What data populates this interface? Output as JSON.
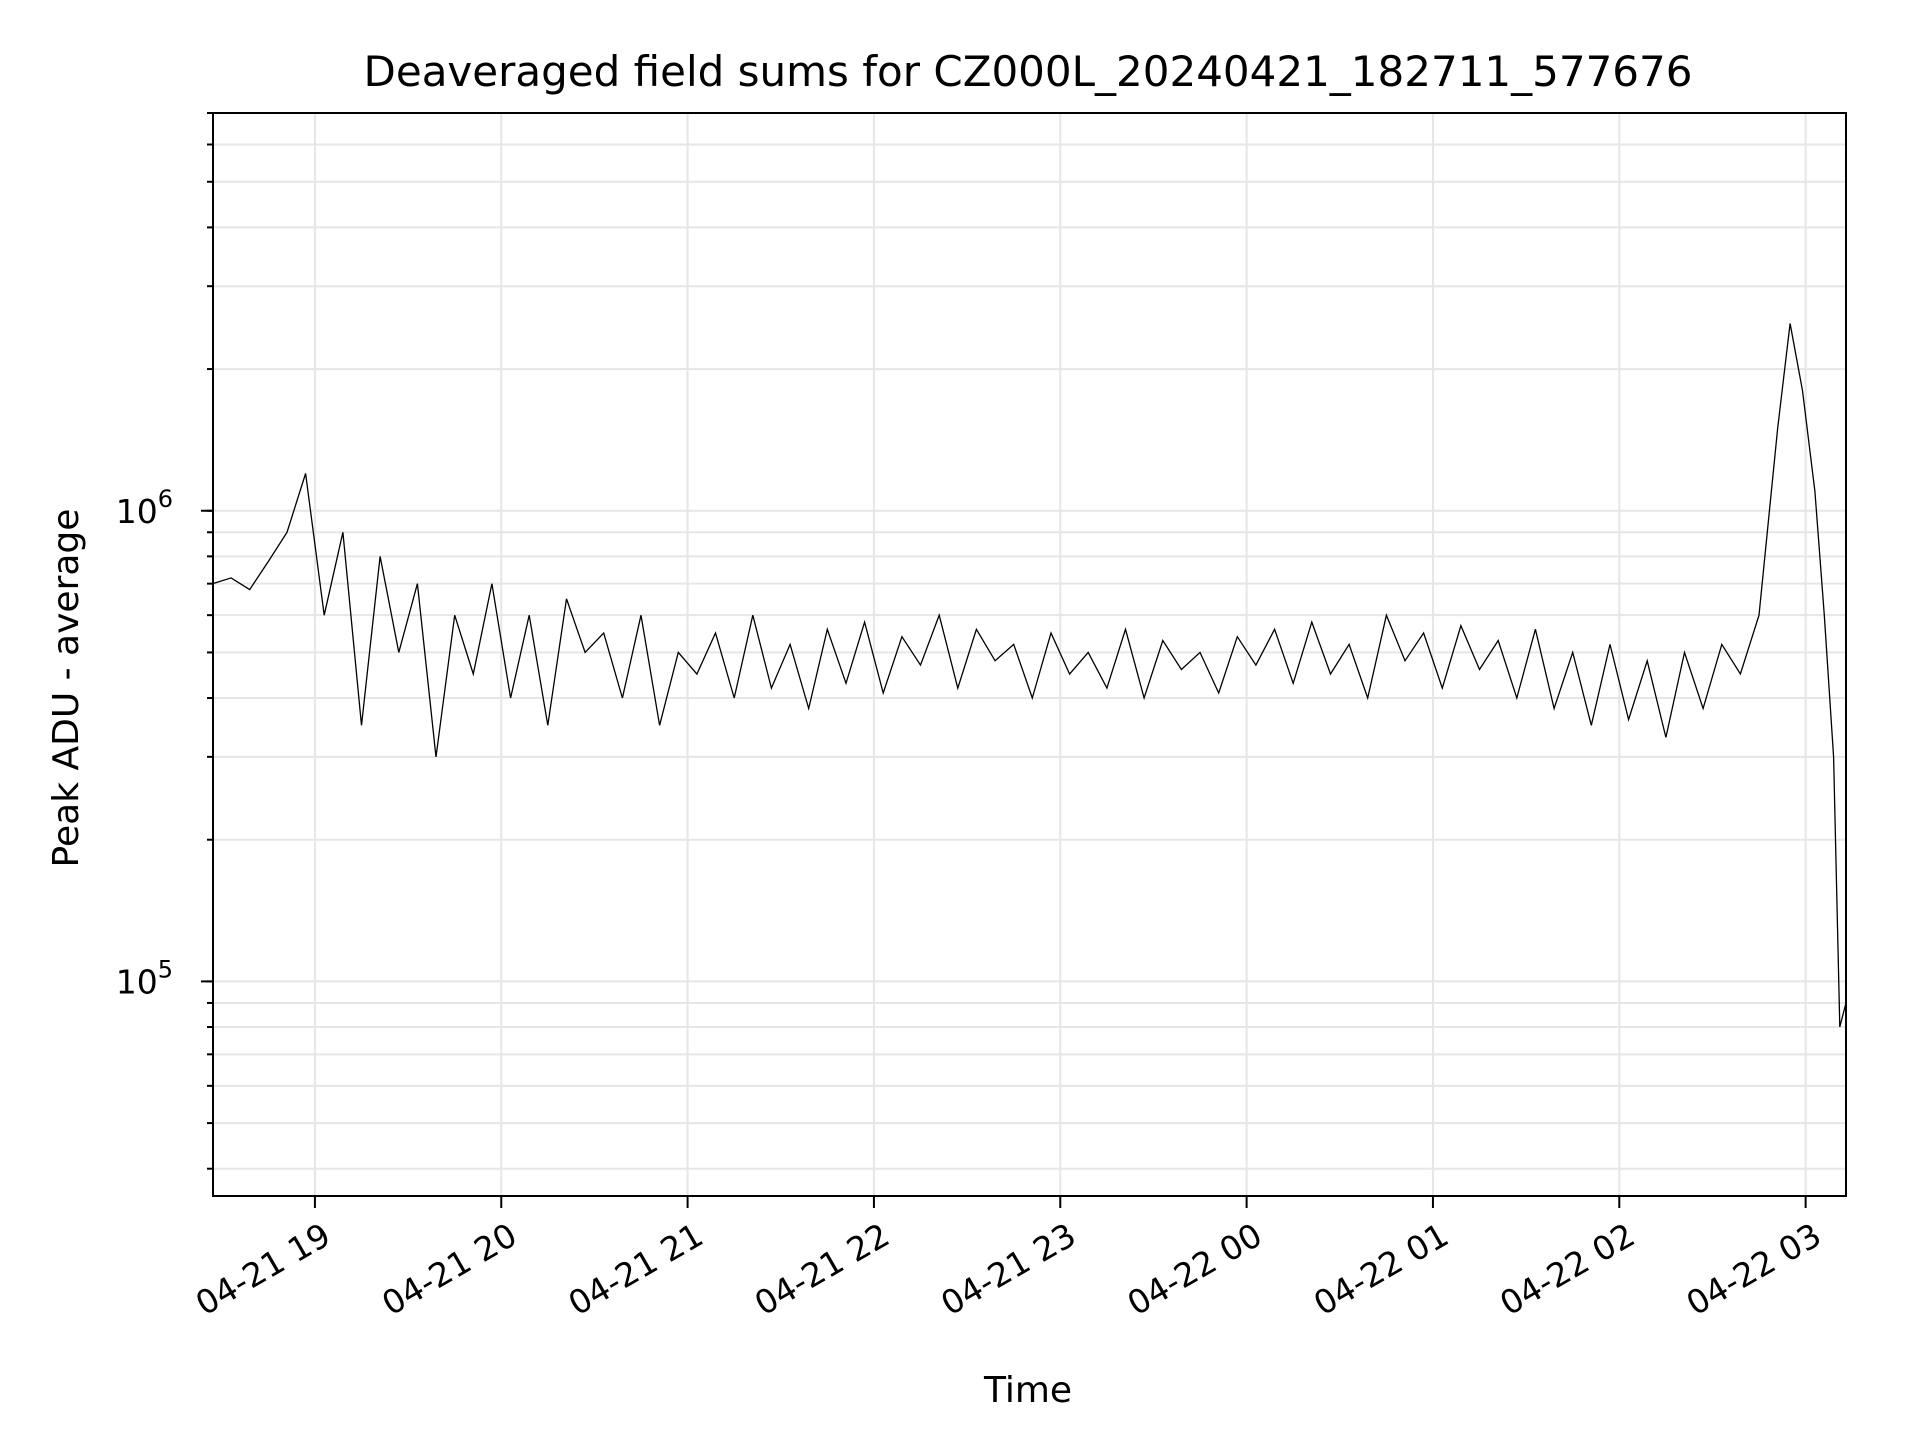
{
  "chart_data": {
    "type": "line",
    "title": "Deaveraged field sums for CZ000L_20240421_182711_577676",
    "xlabel": "Time",
    "ylabel": "Peak ADU - average",
    "yscale": "log",
    "grid": true,
    "line_color": "#000000",
    "xlim": [
      "2024-04-21T18:27:11",
      "2024-04-22T03:13:00"
    ],
    "ylim": [
      35000,
      7000000
    ],
    "x_ticks": [
      {
        "label": "04-21 19",
        "t": "2024-04-21T19:00:00"
      },
      {
        "label": "04-21 20",
        "t": "2024-04-21T20:00:00"
      },
      {
        "label": "04-21 21",
        "t": "2024-04-21T21:00:00"
      },
      {
        "label": "04-21 22",
        "t": "2024-04-21T22:00:00"
      },
      {
        "label": "04-21 23",
        "t": "2024-04-21T23:00:00"
      },
      {
        "label": "04-22 00",
        "t": "2024-04-22T00:00:00"
      },
      {
        "label": "04-22 01",
        "t": "2024-04-22T01:00:00"
      },
      {
        "label": "04-22 02",
        "t": "2024-04-22T02:00:00"
      },
      {
        "label": "04-22 03",
        "t": "2024-04-22T03:00:00"
      }
    ],
    "y_ticks": [
      {
        "base": "10",
        "exp": "5",
        "value": 100000
      },
      {
        "base": "10",
        "exp": "6",
        "value": 1000000
      }
    ],
    "series": [
      {
        "points": [
          [
            "2024-04-21T18:27",
            700000
          ],
          [
            "2024-04-21T18:33",
            720000
          ],
          [
            "2024-04-21T18:39",
            680000
          ],
          [
            "2024-04-21T18:45",
            780000
          ],
          [
            "2024-04-21T18:51",
            900000
          ],
          [
            "2024-04-21T18:57",
            1200000
          ],
          [
            "2024-04-21T19:03",
            600000
          ],
          [
            "2024-04-21T19:09",
            900000
          ],
          [
            "2024-04-21T19:15",
            350000
          ],
          [
            "2024-04-21T19:21",
            800000
          ],
          [
            "2024-04-21T19:27",
            500000
          ],
          [
            "2024-04-21T19:33",
            700000
          ],
          [
            "2024-04-21T19:39",
            300000
          ],
          [
            "2024-04-21T19:45",
            600000
          ],
          [
            "2024-04-21T19:51",
            450000
          ],
          [
            "2024-04-21T19:57",
            700000
          ],
          [
            "2024-04-21T20:03",
            400000
          ],
          [
            "2024-04-21T20:09",
            600000
          ],
          [
            "2024-04-21T20:15",
            350000
          ],
          [
            "2024-04-21T20:21",
            650000
          ],
          [
            "2024-04-21T20:27",
            500000
          ],
          [
            "2024-04-21T20:33",
            550000
          ],
          [
            "2024-04-21T20:39",
            400000
          ],
          [
            "2024-04-21T20:45",
            600000
          ],
          [
            "2024-04-21T20:51",
            350000
          ],
          [
            "2024-04-21T20:57",
            500000
          ],
          [
            "2024-04-21T21:03",
            450000
          ],
          [
            "2024-04-21T21:09",
            550000
          ],
          [
            "2024-04-21T21:15",
            400000
          ],
          [
            "2024-04-21T21:21",
            600000
          ],
          [
            "2024-04-21T21:27",
            420000
          ],
          [
            "2024-04-21T21:33",
            520000
          ],
          [
            "2024-04-21T21:39",
            380000
          ],
          [
            "2024-04-21T21:45",
            560000
          ],
          [
            "2024-04-21T21:51",
            430000
          ],
          [
            "2024-04-21T21:57",
            580000
          ],
          [
            "2024-04-21T22:03",
            410000
          ],
          [
            "2024-04-21T22:09",
            540000
          ],
          [
            "2024-04-21T22:15",
            470000
          ],
          [
            "2024-04-21T22:21",
            600000
          ],
          [
            "2024-04-21T22:27",
            420000
          ],
          [
            "2024-04-21T22:33",
            560000
          ],
          [
            "2024-04-21T22:39",
            480000
          ],
          [
            "2024-04-21T22:45",
            520000
          ],
          [
            "2024-04-21T22:51",
            400000
          ],
          [
            "2024-04-21T22:57",
            550000
          ],
          [
            "2024-04-21T23:03",
            450000
          ],
          [
            "2024-04-21T23:09",
            500000
          ],
          [
            "2024-04-21T23:15",
            420000
          ],
          [
            "2024-04-21T23:21",
            560000
          ],
          [
            "2024-04-21T23:27",
            400000
          ],
          [
            "2024-04-21T23:33",
            530000
          ],
          [
            "2024-04-21T23:39",
            460000
          ],
          [
            "2024-04-21T23:45",
            500000
          ],
          [
            "2024-04-21T23:51",
            410000
          ],
          [
            "2024-04-21T23:57",
            540000
          ],
          [
            "2024-04-22T00:03",
            470000
          ],
          [
            "2024-04-22T00:09",
            560000
          ],
          [
            "2024-04-22T00:15",
            430000
          ],
          [
            "2024-04-22T00:21",
            580000
          ],
          [
            "2024-04-22T00:27",
            450000
          ],
          [
            "2024-04-22T00:33",
            520000
          ],
          [
            "2024-04-22T00:39",
            400000
          ],
          [
            "2024-04-22T00:45",
            600000
          ],
          [
            "2024-04-22T00:51",
            480000
          ],
          [
            "2024-04-22T00:57",
            550000
          ],
          [
            "2024-04-22T01:03",
            420000
          ],
          [
            "2024-04-22T01:09",
            570000
          ],
          [
            "2024-04-22T01:15",
            460000
          ],
          [
            "2024-04-22T01:21",
            530000
          ],
          [
            "2024-04-22T01:27",
            400000
          ],
          [
            "2024-04-22T01:33",
            560000
          ],
          [
            "2024-04-22T01:39",
            380000
          ],
          [
            "2024-04-22T01:45",
            500000
          ],
          [
            "2024-04-22T01:51",
            350000
          ],
          [
            "2024-04-22T01:57",
            520000
          ],
          [
            "2024-04-22T02:03",
            360000
          ],
          [
            "2024-04-22T02:09",
            480000
          ],
          [
            "2024-04-22T02:15",
            330000
          ],
          [
            "2024-04-22T02:21",
            500000
          ],
          [
            "2024-04-22T02:27",
            380000
          ],
          [
            "2024-04-22T02:33",
            520000
          ],
          [
            "2024-04-22T02:39",
            450000
          ],
          [
            "2024-04-22T02:45",
            600000
          ],
          [
            "2024-04-22T02:51",
            1500000
          ],
          [
            "2024-04-22T02:55",
            2500000
          ],
          [
            "2024-04-22T02:59",
            1800000
          ],
          [
            "2024-04-22T03:03",
            1100000
          ],
          [
            "2024-04-22T03:06",
            600000
          ],
          [
            "2024-04-22T03:09",
            300000
          ],
          [
            "2024-04-22T03:11",
            80000
          ],
          [
            "2024-04-22T03:13",
            90000
          ]
        ]
      }
    ]
  }
}
